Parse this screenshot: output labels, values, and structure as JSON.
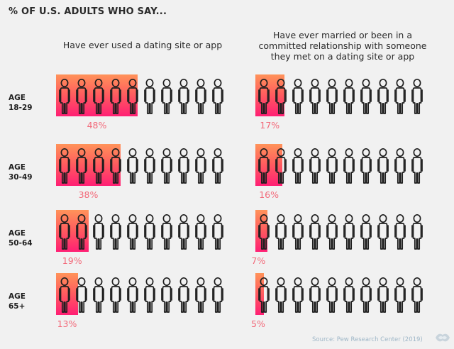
{
  "heading": "% OF U.S. ADULTS WHO SAY...",
  "chart_data": {
    "type": "pictograph",
    "title": "% OF U.S. ADULTS WHO SAY...",
    "icons_per_row": 10,
    "series": [
      {
        "name": "Have ever used a dating site or app"
      },
      {
        "name": "Have ever married or been in a committed relationship with someone they met on a dating site or app"
      }
    ],
    "rows": [
      {
        "age_line1": "AGE",
        "age_line2": "18-29",
        "values": [
          48,
          17
        ],
        "labels": [
          "48%",
          "17%"
        ]
      },
      {
        "age_line1": "AGE",
        "age_line2": "30-49",
        "values": [
          38,
          16
        ],
        "labels": [
          "38%",
          "16%"
        ]
      },
      {
        "age_line1": "AGE",
        "age_line2": "50-64",
        "values": [
          19,
          7
        ],
        "labels": [
          "19%",
          "7%"
        ]
      },
      {
        "age_line1": "AGE",
        "age_line2": "65+",
        "values": [
          13,
          5
        ],
        "labels": [
          "13%",
          "5%"
        ]
      }
    ],
    "fill_colors": [
      "#ff9359",
      "#ff5a5f",
      "#ff1f74"
    ],
    "label_color": "#f26a7a"
  },
  "titles": {
    "left": "Have ever used a dating site or app",
    "right": "Have ever married or been in a committed relationship with someone they met on a dating site or app"
  },
  "source": "Source: Pew Research Center (2019)",
  "logo_icon": "visual-capitalist-logo-icon"
}
